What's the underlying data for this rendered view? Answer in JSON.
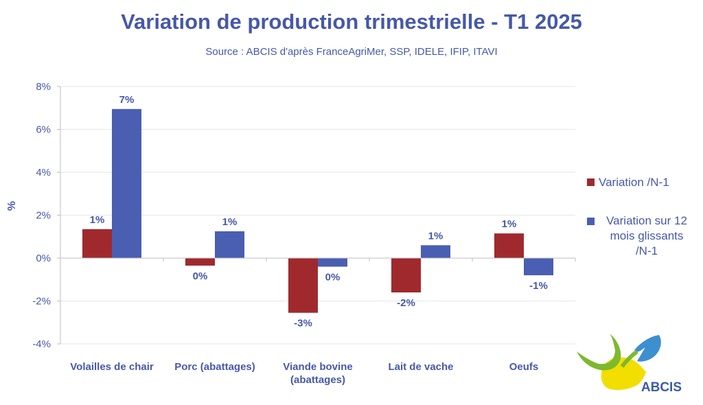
{
  "chart_data": {
    "type": "bar",
    "title": "Variation de production trimestrielle - T1 2025",
    "subtitle": "Source : ABCIS d'après FranceAgriMer, SSP, IDELE, IFIP, ITAVI",
    "ylabel": "%",
    "ylim": [
      -4,
      8
    ],
    "yticks": [
      "-4%",
      "-2%",
      "0%",
      "2%",
      "4%",
      "6%",
      "8%"
    ],
    "categories": [
      "Volailles de chair",
      "Porc (abattages)",
      "Viande bovine (abattages)",
      "Lait de vache",
      "Oeufs"
    ],
    "category_lines": [
      [
        "Volailles de chair"
      ],
      [
        "Porc (abattages)"
      ],
      [
        "Viande bovine",
        "(abattages)"
      ],
      [
        "Lait de vache"
      ],
      [
        "Oeufs"
      ]
    ],
    "series": [
      {
        "name": "Variation /N-1",
        "color": "#A0292E",
        "values": [
          1.35,
          -0.35,
          -2.55,
          -1.6,
          1.15
        ],
        "labels": [
          "1%",
          "0%",
          "-3%",
          "-2%",
          "1%"
        ]
      },
      {
        "name": "Variation sur 12 mois glissants /N-1",
        "color": "#4A5EB2",
        "values": [
          6.95,
          1.25,
          -0.4,
          0.6,
          -0.8
        ],
        "labels": [
          "7%",
          "1%",
          "0%",
          "1%",
          "-1%"
        ]
      }
    ],
    "grid": true,
    "legend": "right"
  },
  "legend_lines": {
    "series2": [
      "Variation sur 12",
      "mois glissants",
      "/N-1"
    ]
  },
  "logo": {
    "text": "ABCIS"
  }
}
